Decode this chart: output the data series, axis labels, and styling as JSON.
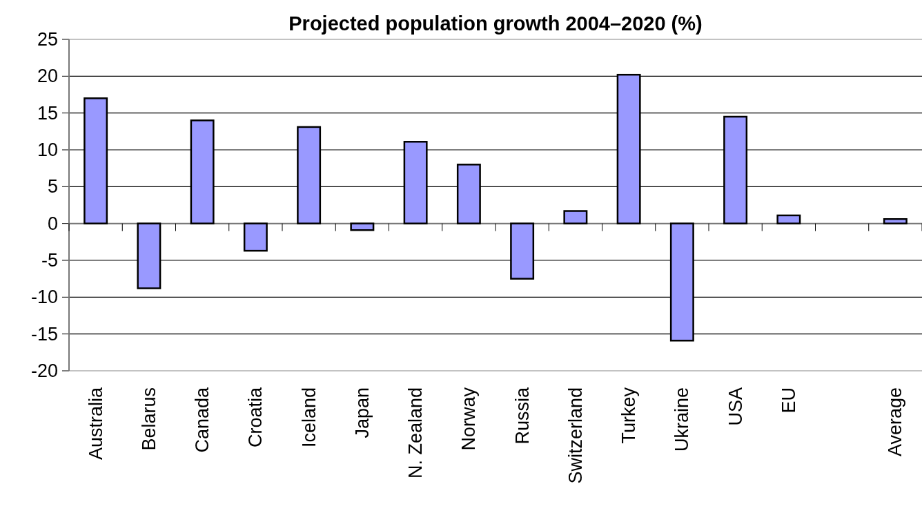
{
  "chart_data": {
    "type": "bar",
    "title": "Projected population growth 2004–2020 (%)",
    "categories": [
      "Australia",
      "Belarus",
      "Canada",
      "Croatia",
      "Iceland",
      "Japan",
      "N. Zealand",
      "Norway",
      "Russia",
      "Switzerland",
      "Turkey",
      "Ukraine",
      "USA",
      "EU",
      null,
      "Average"
    ],
    "values": [
      17,
      -8.8,
      14,
      -3.7,
      13.1,
      -0.9,
      11.1,
      8,
      -7.5,
      1.7,
      20.2,
      -15.9,
      14.5,
      1.1,
      null,
      0.6
    ],
    "color": "#9999ff",
    "ylim": [
      -20,
      25
    ],
    "yticks": [
      -20,
      -15,
      -10,
      -5,
      0,
      5,
      10,
      15,
      20,
      25
    ],
    "grid": "y"
  }
}
